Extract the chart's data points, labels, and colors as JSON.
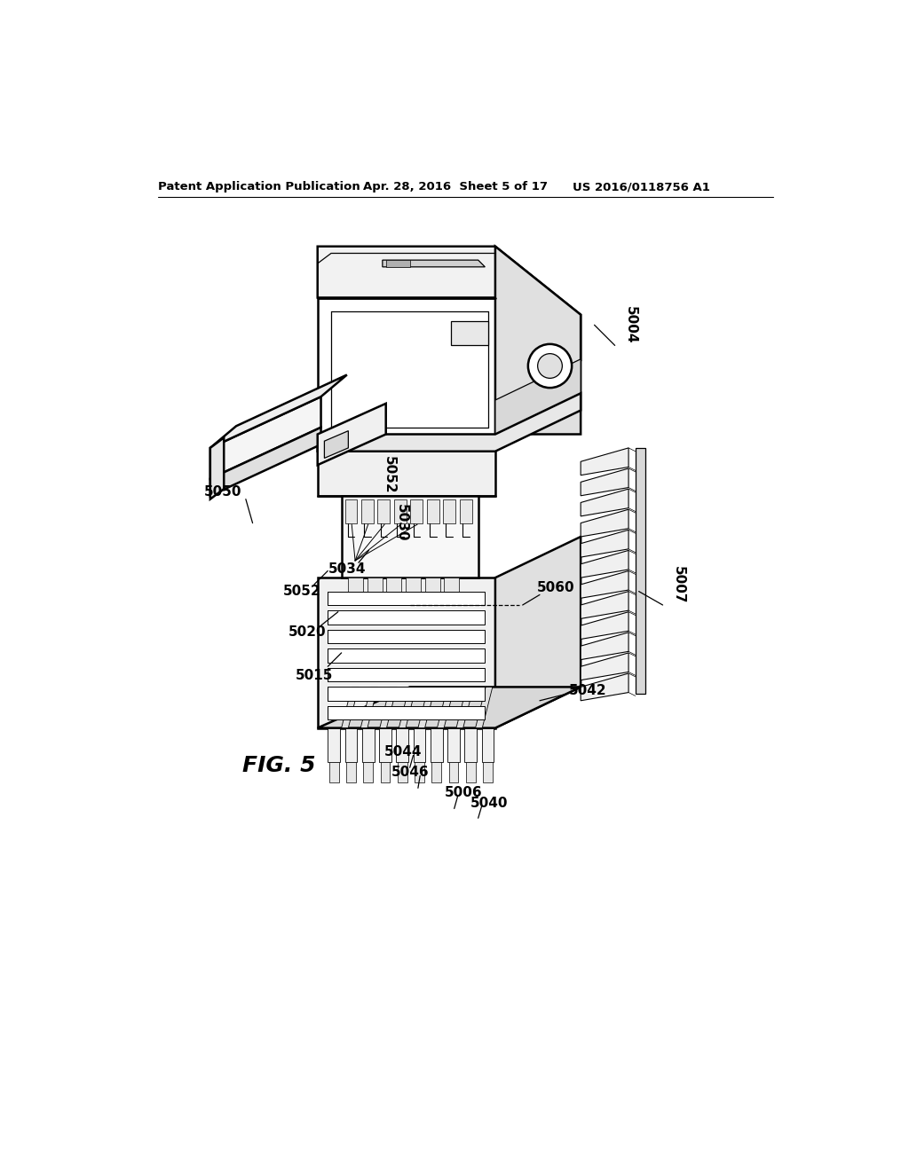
{
  "header_left": "Patent Application Publication",
  "header_mid": "Apr. 28, 2016  Sheet 5 of 17",
  "header_right": "US 2016/0118756 A1",
  "fig_label": "FIG. 5",
  "bg_color": "#ffffff",
  "line_color": "#000000",
  "lw_main": 1.8,
  "lw_thin": 0.9,
  "lw_hair": 0.5
}
